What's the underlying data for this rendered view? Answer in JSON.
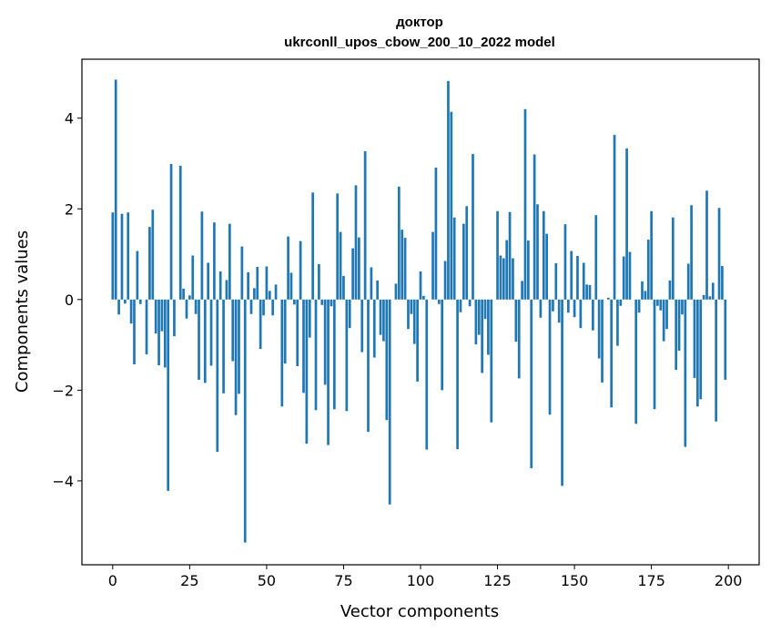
{
  "chart_data": {
    "type": "bar",
    "title_line1": "доктор",
    "title_line2": "ukrconll_upos_cbow_200_10_2022 model",
    "xlabel": "Vector components",
    "ylabel": "Components values",
    "xlim": [
      -10,
      210
    ],
    "ylim": [
      -5.85,
      5.3
    ],
    "xticks": [
      0,
      25,
      50,
      75,
      100,
      125,
      150,
      175,
      200
    ],
    "yticks": [
      -4,
      -2,
      0,
      2,
      4
    ],
    "xtick_labels": [
      "0",
      "25",
      "50",
      "75",
      "100",
      "125",
      "150",
      "175",
      "200"
    ],
    "ytick_labels": [
      "−4",
      "−2",
      "0",
      "2",
      "4"
    ],
    "bar_color": "#1f77b4",
    "grid": false,
    "legend": "none",
    "values": [
      1.92,
      4.85,
      -0.33,
      1.89,
      -0.09,
      1.92,
      -0.53,
      -1.43,
      1.07,
      -0.1,
      0.0,
      -1.21,
      1.6,
      1.98,
      -0.75,
      -1.45,
      -0.7,
      -1.5,
      -4.22,
      2.99,
      -0.81,
      0.0,
      2.95,
      0.24,
      -0.42,
      0.09,
      0.97,
      -0.32,
      -1.77,
      1.94,
      -1.84,
      0.81,
      -1.46,
      1.7,
      -3.36,
      0.62,
      -2.07,
      0.43,
      1.67,
      -1.36,
      -2.55,
      -2.08,
      1.17,
      -5.36,
      0.6,
      -0.32,
      0.25,
      0.72,
      -1.09,
      -0.35,
      0.73,
      0.19,
      -0.35,
      0.33,
      0.0,
      -2.36,
      -1.41,
      1.39,
      0.59,
      -0.11,
      -1.47,
      1.29,
      -2.06,
      -3.18,
      -0.84,
      2.36,
      -2.44,
      0.78,
      -0.12,
      -1.88,
      -3.21,
      -0.15,
      -2.42,
      2.34,
      1.49,
      0.52,
      -2.46,
      -0.63,
      1.13,
      2.52,
      1.37,
      -1.16,
      3.27,
      -2.92,
      0.71,
      -1.28,
      0.42,
      -0.78,
      -0.92,
      -2.66,
      -4.52,
      0.0,
      0.35,
      2.49,
      1.54,
      1.36,
      -0.65,
      -0.32,
      -0.98,
      -1.81,
      0.62,
      0.08,
      -3.31,
      0.0,
      1.49,
      2.91,
      -0.1,
      -2.0,
      0.85,
      4.82,
      4.14,
      1.81,
      -3.3,
      -0.28,
      1.67,
      2.06,
      -0.15,
      3.21,
      -0.99,
      -0.78,
      -1.62,
      -0.43,
      -1.22,
      -2.71,
      0.0,
      1.95,
      0.97,
      0.91,
      1.31,
      1.93,
      0.91,
      -0.93,
      -1.74,
      0.41,
      4.2,
      1.3,
      -3.72,
      3.2,
      2.1,
      -0.4,
      1.95,
      1.45,
      -2.54,
      -0.26,
      0.8,
      -0.51,
      -4.11,
      1.66,
      -0.29,
      1.07,
      -0.39,
      0.96,
      -0.63,
      0.81,
      0.33,
      0.32,
      -0.68,
      1.86,
      -1.3,
      -1.83,
      0.0,
      0.04,
      -2.38,
      3.63,
      -1.02,
      -0.14,
      0.95,
      3.33,
      1.05,
      0.0,
      -2.74,
      -0.29,
      0.4,
      0.19,
      1.32,
      1.95,
      -2.42,
      -0.14,
      -0.24,
      -0.92,
      -0.65,
      0.42,
      1.81,
      -1.55,
      -1.13,
      -0.33,
      -3.25,
      0.79,
      2.08,
      -1.73,
      -2.36,
      -2.2,
      0.1,
      2.4,
      0.07,
      0.37,
      -2.69,
      2.02,
      0.74,
      -1.77
    ]
  }
}
